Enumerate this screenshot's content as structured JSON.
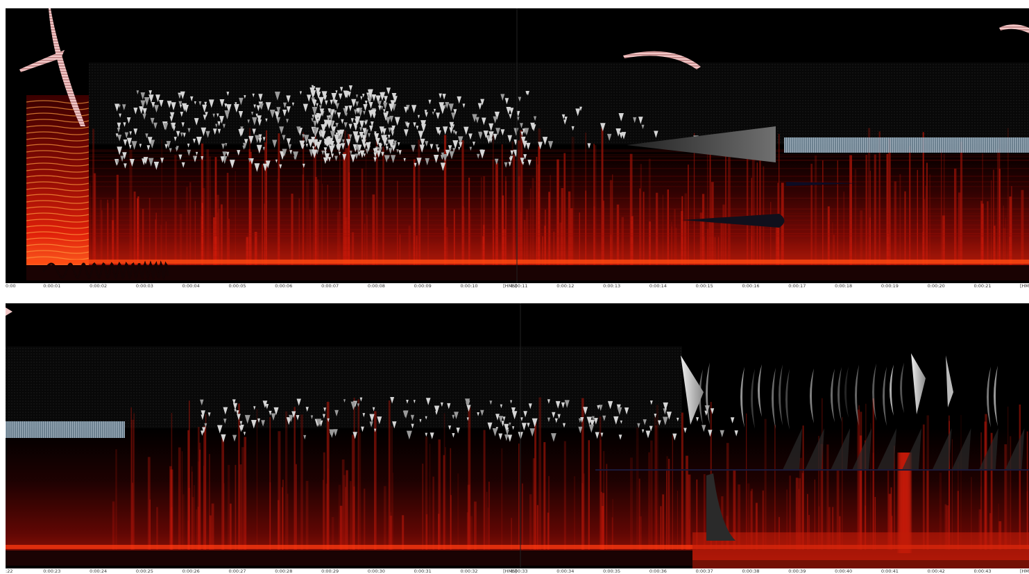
{
  "top": {
    "ticks": [
      "0:00",
      "0:00:01",
      "0:00:02",
      "0:00:03",
      "0:00:04",
      "0:00:05",
      "0:00:06",
      "0:00:07",
      "0:00:08",
      "0:00:09",
      "0:00:10",
      "[HMS]",
      "0:00:11",
      "0:00:12",
      "0:00:13",
      "0:00:14",
      "0:00:15",
      "0:00:16",
      "0:00:17",
      "0:00:18",
      "0:00:19",
      "0:00:20",
      "0:00:21",
      "[HMS]"
    ]
  },
  "bottom": {
    "ticks": [
      ":22",
      "0:00:23",
      "0:00:24",
      "0:00:25",
      "0:00:26",
      "0:00:27",
      "0:00:28",
      "0:00:29",
      "0:00:30",
      "0:00:31",
      "0:00:32",
      "[HMS]",
      "0:00:33",
      "0:00:34",
      "0:00:35",
      "0:00:36",
      "0:00:37",
      "0:00:38",
      "0:00:39",
      "0:00:40",
      "0:00:41",
      "0:00:42",
      "0:00:43",
      "[HMS]"
    ]
  },
  "colors": {
    "spectrum_hot": "#ff3a10",
    "spectrum_mid": "#c01008",
    "spectrum_dim": "#4a0202",
    "glyph_light": "#d8d8d8",
    "glyph_dim": "#555555",
    "arc_pink": "#f0c8c8",
    "wave_dark": "#150404",
    "ribbon_blue": "#8fa4b4"
  }
}
